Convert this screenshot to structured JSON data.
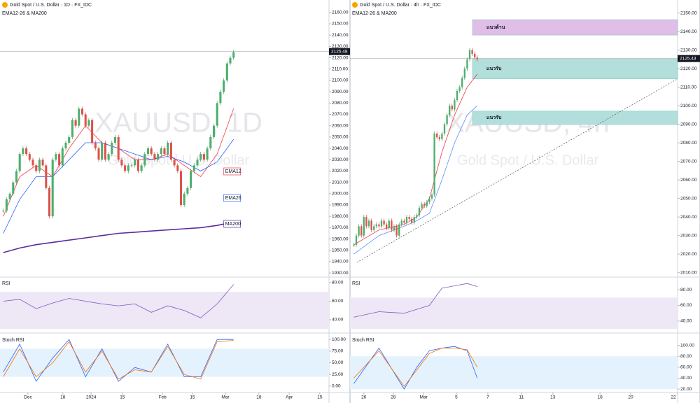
{
  "chart_data": [
    {
      "type": "candlestick",
      "title": "Gold Spot / U.S. Dollar · 1D · FX_IDC",
      "subtitle": "EMA12-26 & MA200",
      "watermark": "XAUUSD, 1D",
      "watermark_subtitle": "Gold Spot / U.S. Dollar",
      "closes": [
        1985,
        1995,
        2000,
        2010,
        2020,
        2035,
        2040,
        2035,
        2030,
        2025,
        2020,
        2030,
        2025,
        2005,
        1980,
        2030,
        2035,
        2025,
        2040,
        2045,
        2050,
        2065,
        2060,
        2075,
        2070,
        2060,
        2065,
        2045,
        2040,
        2030,
        2045,
        2030,
        2035,
        2045,
        2050,
        2030,
        2025,
        2020,
        2025,
        2025,
        2030,
        2020,
        2025,
        2035,
        2040,
        2035,
        2030,
        2035,
        2040,
        2035,
        2045,
        2030,
        2025,
        2020,
        1990,
        2000,
        2005,
        2020,
        2025,
        2030,
        2035,
        2030,
        2040,
        2050,
        2060,
        2080,
        2090,
        2100,
        2115,
        2120,
        2125
      ],
      "last_price": {
        "value": 2125.48,
        "label": "2125.48"
      },
      "xlim": [
        -1,
        99
      ],
      "ylim": [
        1927,
        2171
      ],
      "xticks": [
        {
          "value": 7.5,
          "label": "Dec"
        },
        {
          "value": 18.1,
          "label": "18"
        },
        {
          "value": 26.7,
          "label": "2024"
        },
        {
          "value": 36.2,
          "label": "15"
        },
        {
          "value": 48.4,
          "label": "Feb"
        },
        {
          "value": 57.5,
          "label": "15"
        },
        {
          "value": 67.5,
          "label": "Mar"
        },
        {
          "value": 77.7,
          "label": "18"
        },
        {
          "value": 86.9,
          "label": "Apr"
        },
        {
          "value": 96.2,
          "label": "15"
        }
      ],
      "yticks": [
        {
          "value": 1930,
          "label": "1930.00"
        },
        {
          "value": 1940,
          "label": "1940.00"
        },
        {
          "value": 1950,
          "label": "1950.00"
        },
        {
          "value": 1960,
          "label": "1960.00"
        },
        {
          "value": 1970,
          "label": "1970.00"
        },
        {
          "value": 1980,
          "label": "1980.00"
        },
        {
          "value": 1990,
          "label": "1990.00"
        },
        {
          "value": 2000,
          "label": "2000.00"
        },
        {
          "value": 2010,
          "label": "2010.00"
        },
        {
          "value": 2020,
          "label": "2020.00"
        },
        {
          "value": 2030,
          "label": "2030.00"
        },
        {
          "value": 2040,
          "label": "2040.00"
        },
        {
          "value": 2050,
          "label": "2050.00"
        },
        {
          "value": 2060,
          "label": "2060.00"
        },
        {
          "value": 2070,
          "label": "2070.00"
        },
        {
          "value": 2080,
          "label": "2080.00"
        },
        {
          "value": 2090,
          "label": "2090.00"
        },
        {
          "value": 2100,
          "label": "2100.00"
        },
        {
          "value": 2110,
          "label": "2110.00"
        },
        {
          "value": 2120,
          "label": "2120.00"
        },
        {
          "value": 2130,
          "label": "2130.00"
        },
        {
          "value": 2140,
          "label": "2140.00"
        },
        {
          "value": 2150,
          "label": "2150.00"
        },
        {
          "value": 2160,
          "label": "2160.00"
        }
      ],
      "series": [
        {
          "name": "EMA12",
          "color": "#f23645",
          "x": [
            0,
            5,
            10,
            15,
            20,
            25,
            30,
            35,
            40,
            45,
            50,
            55,
            60,
            65,
            70
          ],
          "values": [
            1980,
            2015,
            2025,
            2015,
            2040,
            2060,
            2045,
            2040,
            2030,
            2030,
            2035,
            2025,
            2015,
            2035,
            2075
          ]
        },
        {
          "name": "EMA26",
          "color": "#2962ff",
          "x": [
            0,
            5,
            10,
            15,
            20,
            25,
            30,
            35,
            40,
            45,
            50,
            55,
            60,
            65,
            70
          ],
          "values": [
            1965,
            1995,
            2015,
            2015,
            2030,
            2045,
            2045,
            2040,
            2035,
            2030,
            2033,
            2028,
            2020,
            2028,
            2048
          ]
        },
        {
          "name": "MA200",
          "color": "#5b2c9e",
          "x": [
            0,
            5,
            10,
            15,
            20,
            25,
            30,
            35,
            40,
            45,
            50,
            55,
            60,
            65,
            70
          ],
          "values": [
            1948,
            1952,
            1955,
            1957,
            1959,
            1961,
            1963,
            1965,
            1966,
            1967,
            1968,
            1969,
            1970,
            1972,
            1975
          ]
        }
      ],
      "rsi": {
        "label": "RSI",
        "color": "#7e57c2",
        "ylim": [
          26.4,
          84.5
        ],
        "band": [
          30,
          70
        ],
        "yticks": [
          {
            "value": 40,
            "label": "40.00"
          },
          {
            "value": 60,
            "label": "60.00"
          },
          {
            "value": 80,
            "label": "80.00"
          }
        ],
        "x": [
          0,
          5,
          10,
          15,
          20,
          25,
          30,
          35,
          40,
          45,
          50,
          55,
          60,
          65,
          70
        ],
        "values": [
          60,
          62,
          52,
          58,
          63,
          60,
          57,
          55,
          57,
          48,
          55,
          50,
          42,
          57,
          78
        ]
      },
      "stoch": {
        "label": "Stoch RSI",
        "ylim": [
          -12.3,
          110.8
        ],
        "band": [
          20,
          80
        ],
        "yticks": [
          {
            "value": 0,
            "label": "0.00"
          },
          {
            "value": 25,
            "label": "25.00"
          },
          {
            "value": 50,
            "label": "50.00"
          },
          {
            "value": 75,
            "label": "75.00"
          },
          {
            "value": 100,
            "label": "100.00"
          }
        ],
        "x": [
          0,
          5,
          10,
          15,
          20,
          25,
          30,
          35,
          40,
          45,
          50,
          55,
          60,
          65,
          70
        ],
        "series": [
          {
            "color": "#2962ff",
            "values": [
              30,
              90,
              10,
              60,
              100,
              20,
              80,
              10,
              40,
              30,
              90,
              20,
              20,
              100,
              100
            ]
          },
          {
            "color": "#ff6d00",
            "values": [
              20,
              80,
              20,
              50,
              95,
              30,
              75,
              15,
              35,
              30,
              85,
              25,
              15,
              95,
              98
            ]
          }
        ]
      }
    },
    {
      "type": "candlestick",
      "title": "Gold Spot / U.S. Dollar · 4h · FX_IDC",
      "subtitle": "EMA12-26 & MA200",
      "watermark": "XAUUSD, 4h",
      "watermark_subtitle": "Gold Spot / U.S. Dollar",
      "closes": [
        2025,
        2030,
        2035,
        2030,
        2040,
        2035,
        2038,
        2033,
        2035,
        2036,
        2035,
        2038,
        2036,
        2034,
        2038,
        2033,
        2035,
        2030,
        2036,
        2038,
        2037,
        2040,
        2039,
        2037,
        2040,
        2041,
        2045,
        2047,
        2046,
        2048,
        2050,
        2052,
        2085,
        2083,
        2082,
        2085,
        2090,
        2095,
        2100,
        2098,
        2103,
        2108,
        2110,
        2115,
        2120,
        2125,
        2130,
        2128,
        2126,
        2125
      ],
      "last_price": {
        "value": 2125.43,
        "label": "2125.43"
      },
      "xlim": [
        -1.5,
        128.5
      ],
      "ylim": [
        2008,
        2157
      ],
      "xticks": [
        {
          "value": 4,
          "label": "26"
        },
        {
          "value": 15.7,
          "label": "28"
        },
        {
          "value": 27.7,
          "label": "Mar"
        },
        {
          "value": 40.7,
          "label": "5"
        },
        {
          "value": 53.2,
          "label": "7"
        },
        {
          "value": 66.5,
          "label": "11"
        },
        {
          "value": 79,
          "label": "13"
        },
        {
          "value": 97.7,
          "label": "18"
        },
        {
          "value": 109.9,
          "label": "20"
        },
        {
          "value": 128.5,
          "label": "22"
        }
      ],
      "yticks": [
        {
          "value": 2010,
          "label": "2010.00"
        },
        {
          "value": 2020,
          "label": "2020.00"
        },
        {
          "value": 2030,
          "label": "2030.00"
        },
        {
          "value": 2040,
          "label": "2040.00"
        },
        {
          "value": 2050,
          "label": "2050.00"
        },
        {
          "value": 2060,
          "label": "2060.00"
        },
        {
          "value": 2070,
          "label": "2070.00"
        },
        {
          "value": 2080,
          "label": "2080.00"
        },
        {
          "value": 2090,
          "label": "2090.00"
        },
        {
          "value": 2100,
          "label": "2100.00"
        },
        {
          "value": 2110,
          "label": "2110.00"
        },
        {
          "value": 2120,
          "label": "2120.00"
        },
        {
          "value": 2130,
          "label": "2130.00"
        },
        {
          "value": 2140,
          "label": "2140.00"
        },
        {
          "value": 2150,
          "label": "2150.00"
        }
      ],
      "series": [
        {
          "color": "#f23645",
          "x": [
            0,
            10,
            20,
            25,
            30,
            35,
            40,
            45,
            49
          ],
          "values": [
            2025,
            2033,
            2036,
            2040,
            2050,
            2075,
            2095,
            2110,
            2117
          ]
        },
        {
          "color": "#5b8ff9",
          "x": [
            0,
            10,
            20,
            25,
            30,
            35,
            40,
            45,
            49
          ],
          "values": [
            2020,
            2030,
            2035,
            2038,
            2042,
            2060,
            2080,
            2095,
            2100
          ]
        }
      ],
      "zones": [
        {
          "label": "แนวต้าน",
          "color": "#e1bee7",
          "range": [
            2138.1,
            2146.4
          ]
        },
        {
          "label": "แนวรับ",
          "color": "#b2dfdb",
          "range": [
            2114.5,
            2125.4
          ]
        },
        {
          "label": "แนวรับ",
          "color": "#b2dfdb",
          "range": [
            2089.9,
            2097.1
          ]
        }
      ],
      "trendline": {
        "x": [
          1.28,
          128.5
        ],
        "values": [
          2015.6,
          2114.5
        ]
      },
      "rsi": {
        "label": "RSI",
        "color": "#7e57c2",
        "ylim": [
          25.6,
          94.4
        ],
        "band": [
          30,
          70
        ],
        "yticks": [
          {
            "value": 40,
            "label": "40.00"
          },
          {
            "value": 60,
            "label": "60.00"
          },
          {
            "value": 80,
            "label": "80.00"
          }
        ],
        "x": [
          0,
          10,
          20,
          25,
          30,
          35,
          40,
          45,
          49
        ],
        "values": [
          45,
          52,
          50,
          55,
          60,
          82,
          85,
          88,
          84
        ]
      },
      "stoch": {
        "label": "Stoch RSI",
        "ylim": [
          15,
          120
        ],
        "band": [
          20,
          80
        ],
        "yticks": [
          {
            "value": 20,
            "label": "20.00"
          },
          {
            "value": 40,
            "label": "40.00"
          },
          {
            "value": 60,
            "label": "60.00"
          },
          {
            "value": 80,
            "label": "80.00"
          },
          {
            "value": 100,
            "label": "100.00"
          }
        ],
        "x": [
          0,
          10,
          20,
          25,
          30,
          35,
          40,
          45,
          49
        ],
        "series": [
          {
            "color": "#2962ff",
            "values": [
              30,
              95,
              20,
              60,
              90,
              95,
              98,
              90,
              40
            ]
          },
          {
            "color": "#ff6d00",
            "values": [
              40,
              90,
              25,
              55,
              85,
              95,
              95,
              92,
              60
            ]
          }
        ]
      }
    }
  ]
}
